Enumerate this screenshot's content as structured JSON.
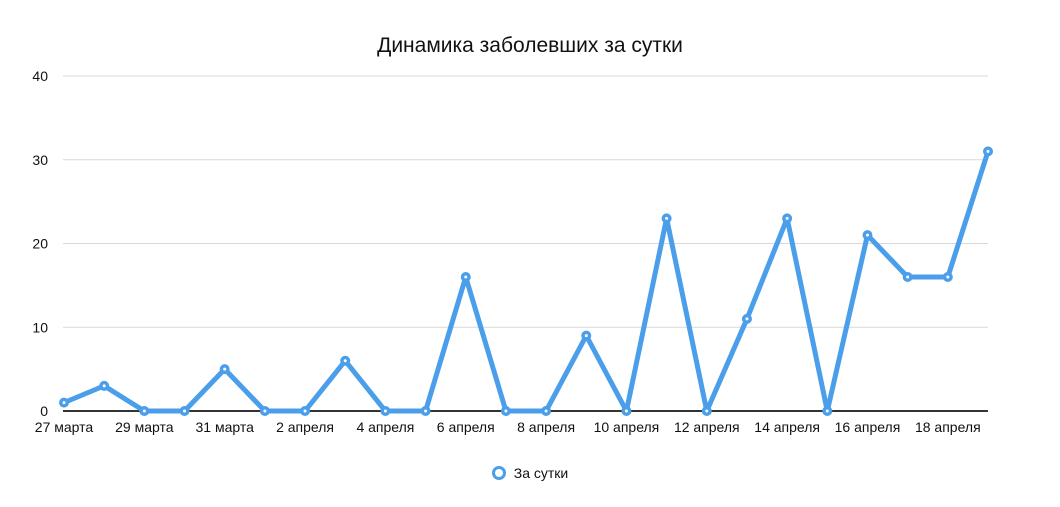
{
  "chart_data": {
    "type": "line",
    "title": "Динамика заболевших за сутки",
    "xlabel": "",
    "ylabel": "",
    "ylim": [
      0,
      40
    ],
    "yticks": [
      0,
      10,
      20,
      30,
      40
    ],
    "grid": true,
    "legend_position": "bottom",
    "x": [
      "27 марта",
      "28 марта",
      "29 марта",
      "30 марта",
      "31 марта",
      "1 апреля",
      "2 апреля",
      "3 апреля",
      "4 апреля",
      "5 апреля",
      "6 апреля",
      "7 апреля",
      "8 апреля",
      "9 апреля",
      "10 апреля",
      "11 апреля",
      "12 апреля",
      "13 апреля",
      "14 апреля",
      "15 апреля",
      "16 апреля",
      "17 апреля",
      "18 апреля",
      "19 апреля"
    ],
    "xtick_labels": [
      "27 марта",
      "29 марта",
      "31 марта",
      "2 апреля",
      "4 апреля",
      "6 апреля",
      "8 апреля",
      "10 апреля",
      "12 апреля",
      "14 апреля",
      "16 апреля",
      "18 апреля"
    ],
    "series": [
      {
        "name": "За сутки",
        "color": "#4A9EEA",
        "values": [
          1,
          3,
          0,
          0,
          5,
          0,
          0,
          6,
          0,
          0,
          16,
          0,
          0,
          9,
          0,
          23,
          0,
          11,
          23,
          0,
          21,
          16,
          16,
          31
        ]
      }
    ]
  },
  "legend": {
    "label": "За сутки"
  },
  "colors": {
    "line": "#4A9EEA",
    "grid": "#d9d9d9",
    "axis": "#333333"
  }
}
